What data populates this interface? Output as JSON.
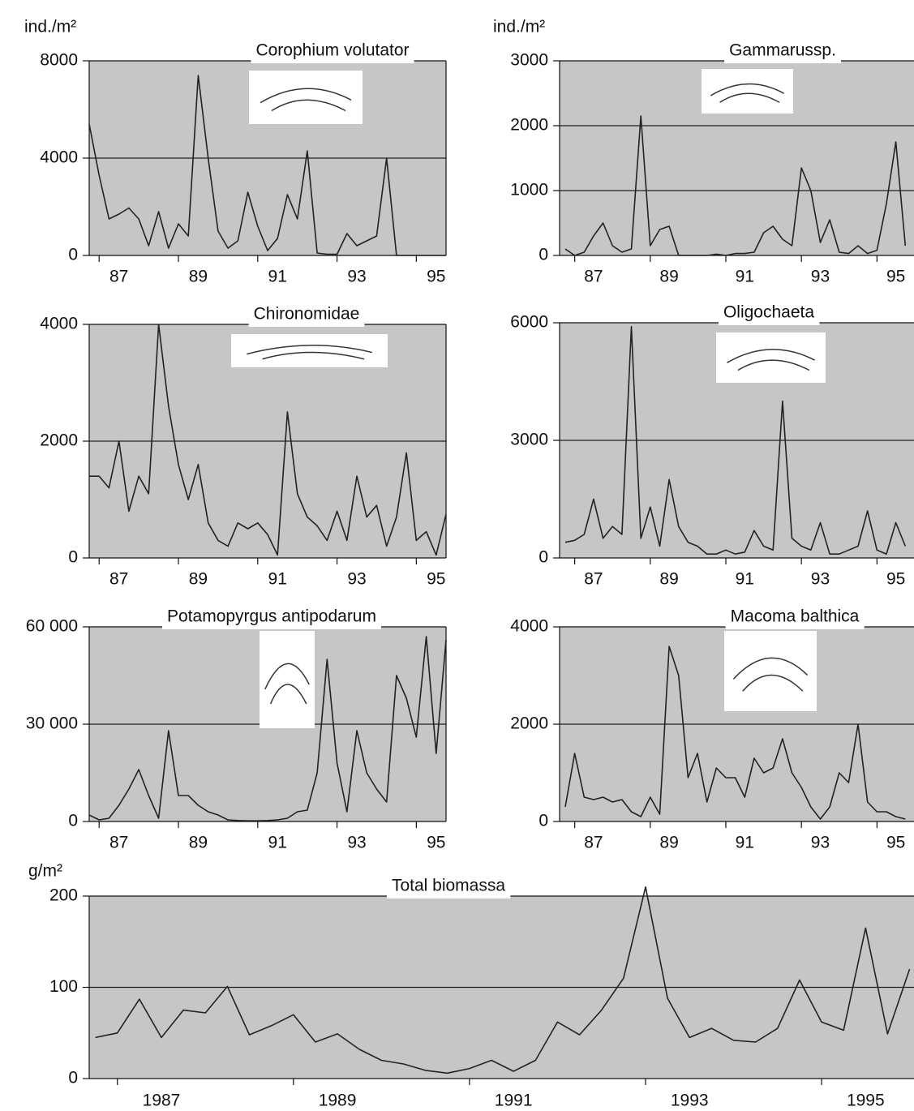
{
  "chart_data": [
    {
      "type": "line",
      "title": "Corophium  volutator",
      "y_label": "ind./m²",
      "color": "#222222",
      "background": "#c6c6c6",
      "grid": true,
      "x": [
        1986.75,
        1987,
        1987.25,
        1987.5,
        1987.75,
        1988,
        1988.25,
        1988.5,
        1988.75,
        1989,
        1989.25,
        1989.5,
        1989.75,
        1990,
        1990.25,
        1990.5,
        1990.75,
        1991,
        1991.25,
        1991.5,
        1991.75,
        1992,
        1992.25,
        1992.5,
        1992.75,
        1993,
        1993.25,
        1993.5,
        1993.75,
        1994,
        1994.25,
        1994.5,
        1994.75,
        1995,
        1995.25,
        1995.5,
        1995.75
      ],
      "values": [
        5400,
        3300,
        1500,
        1700,
        1950,
        1500,
        400,
        1800,
        300,
        1300,
        800,
        7400,
        4000,
        1000,
        300,
        600,
        2600,
        1200,
        200,
        700,
        2500,
        1500,
        4300,
        100,
        50,
        50,
        900,
        400,
        600,
        800,
        4000,
        0,
        0,
        0,
        0,
        0,
        0
      ],
      "xlim": [
        1986.75,
        1995.75
      ],
      "ylim": [
        0,
        8000
      ],
      "yticks": [
        0,
        4000,
        8000
      ],
      "xticks": [
        {
          "value": 1987,
          "label": "87"
        },
        {
          "value": 1989,
          "label": "89"
        },
        {
          "value": 1991,
          "label": "91"
        },
        {
          "value": 1993,
          "label": "93"
        },
        {
          "value": 1995,
          "label": "95"
        }
      ]
    },
    {
      "type": "line",
      "title": "Gammarussp.",
      "y_label": "ind./m²",
      "color": "#222222",
      "background": "#c6c6c6",
      "grid": true,
      "x": [
        1986.75,
        1987,
        1987.25,
        1987.5,
        1987.75,
        1988,
        1988.25,
        1988.5,
        1988.75,
        1989,
        1989.25,
        1989.5,
        1989.75,
        1990,
        1990.25,
        1990.5,
        1990.75,
        1991,
        1991.25,
        1991.5,
        1991.75,
        1992,
        1992.25,
        1992.5,
        1992.75,
        1993,
        1993.25,
        1993.5,
        1993.75,
        1994,
        1994.25,
        1994.5,
        1994.75,
        1995,
        1995.25,
        1995.5,
        1995.75
      ],
      "values": [
        100,
        0,
        50,
        300,
        500,
        150,
        50,
        100,
        2150,
        150,
        400,
        450,
        0,
        0,
        0,
        0,
        20,
        0,
        30,
        30,
        50,
        350,
        450,
        250,
        150,
        1350,
        1000,
        200,
        550,
        50,
        30,
        150,
        30,
        80,
        800,
        1750,
        150
      ],
      "xlim": [
        1986.6,
        1995.98
      ],
      "ylim": [
        0,
        3000
      ],
      "yticks": [
        0,
        1000,
        2000,
        3000
      ],
      "xticks": [
        {
          "value": 1987,
          "label": "87"
        },
        {
          "value": 1989,
          "label": "89"
        },
        {
          "value": 1991,
          "label": "91"
        },
        {
          "value": 1993,
          "label": "93"
        },
        {
          "value": 1995,
          "label": "95"
        }
      ]
    },
    {
      "type": "line",
      "title": "Chironomidae",
      "color": "#222222",
      "background": "#c6c6c6",
      "grid": true,
      "x": [
        1986.75,
        1987,
        1987.25,
        1987.5,
        1987.75,
        1988,
        1988.25,
        1988.5,
        1988.75,
        1989,
        1989.25,
        1989.5,
        1989.75,
        1990,
        1990.25,
        1990.5,
        1990.75,
        1991,
        1991.25,
        1991.5,
        1991.75,
        1992,
        1992.25,
        1992.5,
        1992.75,
        1993,
        1993.25,
        1993.5,
        1993.75,
        1994,
        1994.25,
        1994.5,
        1994.75,
        1995,
        1995.25,
        1995.5,
        1995.75
      ],
      "values": [
        1400,
        1400,
        1200,
        2000,
        800,
        1400,
        1100,
        4000,
        2600,
        1600,
        1000,
        1600,
        600,
        300,
        200,
        600,
        500,
        600,
        400,
        50,
        2500,
        1100,
        700,
        550,
        300,
        800,
        300,
        1400,
        700,
        900,
        200,
        700,
        1800,
        300,
        450,
        50,
        750
      ],
      "xlim": [
        1986.75,
        1995.75
      ],
      "ylim": [
        0,
        4000
      ],
      "yticks": [
        0,
        2000,
        4000
      ],
      "xticks": [
        {
          "value": 1987,
          "label": "87"
        },
        {
          "value": 1989,
          "label": "89"
        },
        {
          "value": 1991,
          "label": "91"
        },
        {
          "value": 1993,
          "label": "93"
        },
        {
          "value": 1995,
          "label": "95"
        }
      ]
    },
    {
      "type": "line",
      "title": "Oligochaeta",
      "color": "#222222",
      "background": "#c6c6c6",
      "grid": true,
      "x": [
        1986.75,
        1987,
        1987.25,
        1987.5,
        1987.75,
        1988,
        1988.25,
        1988.5,
        1988.75,
        1989,
        1989.25,
        1989.5,
        1989.75,
        1990,
        1990.25,
        1990.5,
        1990.75,
        1991,
        1991.25,
        1991.5,
        1991.75,
        1992,
        1992.25,
        1992.5,
        1992.75,
        1993,
        1993.25,
        1993.5,
        1993.75,
        1994,
        1994.25,
        1994.5,
        1994.75,
        1995,
        1995.25,
        1995.5,
        1995.75
      ],
      "values": [
        400,
        450,
        600,
        1500,
        500,
        800,
        600,
        5900,
        500,
        1300,
        300,
        2000,
        800,
        400,
        300,
        100,
        100,
        200,
        100,
        150,
        700,
        300,
        200,
        4000,
        500,
        300,
        200,
        900,
        100,
        100,
        200,
        300,
        1200,
        200,
        100,
        900,
        300
      ],
      "xlim": [
        1986.6,
        1995.98
      ],
      "ylim": [
        0,
        6000
      ],
      "yticks": [
        0,
        3000,
        6000
      ],
      "xticks": [
        {
          "value": 1987,
          "label": "87"
        },
        {
          "value": 1989,
          "label": "89"
        },
        {
          "value": 1991,
          "label": "91"
        },
        {
          "value": 1993,
          "label": "93"
        },
        {
          "value": 1995,
          "label": "95"
        }
      ]
    },
    {
      "type": "line",
      "title": "Potamopyrgus  antipodarum",
      "color": "#222222",
      "background": "#c6c6c6",
      "grid": true,
      "x": [
        1986.75,
        1987,
        1987.25,
        1987.5,
        1987.75,
        1988,
        1988.25,
        1988.5,
        1988.75,
        1989,
        1989.25,
        1989.5,
        1989.75,
        1990,
        1990.25,
        1990.5,
        1990.75,
        1991,
        1991.25,
        1991.5,
        1991.75,
        1992,
        1992.25,
        1992.5,
        1992.75,
        1993,
        1993.25,
        1993.5,
        1993.75,
        1994,
        1994.25,
        1994.5,
        1994.75,
        1995,
        1995.25,
        1995.5,
        1995.75
      ],
      "values": [
        2000,
        500,
        1000,
        5000,
        10000,
        16000,
        8000,
        1000,
        28000,
        8000,
        8000,
        5000,
        3000,
        2000,
        500,
        300,
        200,
        200,
        300,
        500,
        1000,
        3000,
        3500,
        15000,
        50000,
        18000,
        3000,
        28000,
        15000,
        10000,
        6000,
        45000,
        38000,
        26000,
        57000,
        21000,
        56000
      ],
      "xlim": [
        1986.75,
        1995.75
      ],
      "ylim": [
        0,
        60000
      ],
      "yticks": [
        0,
        {
          "value": 30000,
          "label": "30 000"
        },
        {
          "value": 60000,
          "label": "60 000"
        }
      ],
      "xticks": [
        {
          "value": 1987,
          "label": "87"
        },
        {
          "value": 1989,
          "label": "89"
        },
        {
          "value": 1991,
          "label": "91"
        },
        {
          "value": 1993,
          "label": "93"
        },
        {
          "value": 1995,
          "label": "95"
        }
      ]
    },
    {
      "type": "line",
      "title": "Macoma balthica",
      "color": "#222222",
      "background": "#c6c6c6",
      "grid": true,
      "x": [
        1986.75,
        1987,
        1987.25,
        1987.5,
        1987.75,
        1988,
        1988.25,
        1988.5,
        1988.75,
        1989,
        1989.25,
        1989.5,
        1989.75,
        1990,
        1990.25,
        1990.5,
        1990.75,
        1991,
        1991.25,
        1991.5,
        1991.75,
        1992,
        1992.25,
        1992.5,
        1992.75,
        1993,
        1993.25,
        1993.5,
        1993.75,
        1994,
        1994.25,
        1994.5,
        1994.75,
        1995,
        1995.25,
        1995.5,
        1995.75
      ],
      "values": [
        300,
        1400,
        500,
        450,
        500,
        400,
        450,
        200,
        100,
        500,
        150,
        3600,
        3000,
        900,
        1400,
        400,
        1100,
        900,
        900,
        500,
        1300,
        1000,
        1100,
        1700,
        1000,
        700,
        300,
        50,
        300,
        1000,
        800,
        2000,
        400,
        200,
        200,
        100,
        50
      ],
      "xlim": [
        1986.6,
        1995.98
      ],
      "ylim": [
        0,
        4000
      ],
      "yticks": [
        0,
        2000,
        4000
      ],
      "xticks": [
        {
          "value": 1987,
          "label": "87"
        },
        {
          "value": 1989,
          "label": "89"
        },
        {
          "value": 1991,
          "label": "91"
        },
        {
          "value": 1993,
          "label": "93"
        },
        {
          "value": 1995,
          "label": "95"
        }
      ]
    },
    {
      "type": "line",
      "title": "Total biomassa",
      "y_label": "g/m²",
      "color": "#222222",
      "background": "#c6c6c6",
      "grid": true,
      "x": [
        1986.75,
        1987,
        1987.25,
        1987.5,
        1987.75,
        1988,
        1988.25,
        1988.5,
        1988.75,
        1989,
        1989.25,
        1989.5,
        1989.75,
        1990,
        1990.25,
        1990.5,
        1990.75,
        1991,
        1991.25,
        1991.5,
        1991.75,
        1992,
        1992.25,
        1992.5,
        1992.75,
        1993,
        1993.25,
        1993.5,
        1993.75,
        1994,
        1994.25,
        1994.5,
        1994.75,
        1995,
        1995.25,
        1995.5,
        1995.75,
        1996
      ],
      "values": [
        45,
        50,
        87,
        45,
        75,
        72,
        101,
        48,
        58,
        70,
        40,
        49,
        32,
        20,
        16,
        9,
        6,
        11,
        20,
        8,
        20,
        62,
        48,
        75,
        110,
        210,
        88,
        45,
        55,
        42,
        40,
        55,
        108,
        62,
        53,
        165,
        49,
        120
      ],
      "xlim": [
        1986.68,
        1996.05
      ],
      "ylim": [
        0,
        200
      ],
      "yticks": [
        0,
        100,
        200
      ],
      "xticks": [
        1987,
        1989,
        1991,
        1993,
        1995
      ]
    }
  ]
}
